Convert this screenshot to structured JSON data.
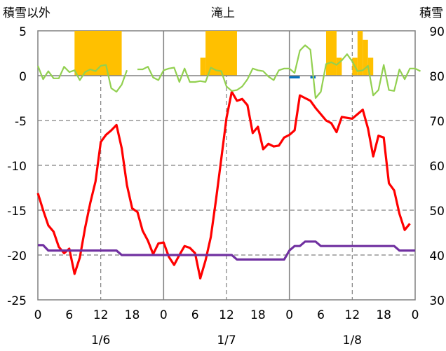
{
  "chart_data": {
    "type": "line",
    "title": "滝上",
    "y_left_label": "積雪以外",
    "y_right_label": "積雪",
    "y_left_range": [
      -25,
      5
    ],
    "y_right_range": [
      30,
      90
    ],
    "y_left_ticks": [
      "5",
      "0",
      "-5",
      "-10",
      "-15",
      "-20",
      "-25"
    ],
    "y_right_ticks": [
      "90",
      "80",
      "70",
      "60",
      "50",
      "40",
      "30"
    ],
    "x_tick_labels": [
      "0",
      "6",
      "12",
      "18",
      "0",
      "6",
      "12",
      "18",
      "0",
      "6",
      "12",
      "18",
      "0"
    ],
    "x_day_labels": [
      "1/6",
      "1/7",
      "1/8"
    ],
    "colors": {
      "red": "#ff0000",
      "green": "#92d050",
      "purple": "#7030a0",
      "orange": "#ffc000",
      "blue": "#0070c0"
    },
    "series": [
      {
        "key": "red",
        "values": [
          -13.1,
          -15,
          -16.7,
          -17.4,
          -19.1,
          -19.8,
          -19.3,
          -22.1,
          -20.3,
          -17,
          -14.2,
          -11.8,
          -7.4,
          -6.6,
          -6.1,
          -5.5,
          -8.1,
          -12.2,
          -14.8,
          -15.2,
          -17.3,
          -18.4,
          -19.9,
          -18.7,
          -18.6,
          -20.2,
          -21.1,
          -20,
          -19,
          -19.2,
          -19.8,
          -22.6,
          -20.6,
          -18,
          -13.8,
          -9.3,
          -4.7,
          -1.8,
          -2.8,
          -2.6,
          -3.3,
          -6.4,
          -5.7,
          -8.2,
          -7.6,
          -7.9,
          -7.8,
          -6.9,
          -6.6,
          -6.1,
          -2.2,
          -2.5,
          -2.8,
          -3.6,
          -4.3,
          -5,
          -5.3,
          -6.3,
          -4.6,
          -4.7,
          -4.8,
          -4.3,
          -3.8,
          -5.9,
          -9,
          -6.7,
          -6.9,
          -12,
          -12.8,
          -15.4,
          -17.2,
          -16.5
        ]
      },
      {
        "key": "green",
        "values": [
          1.1,
          -0.4,
          0.5,
          -0.3,
          -0.3,
          1.0,
          0.4,
          0.6,
          -0.5,
          0.4,
          0.7,
          0.5,
          1.1,
          1.2,
          -1.4,
          -1.8,
          -1.0,
          0.6,
          null,
          0.7,
          0.7,
          1.0,
          -0.2,
          -0.5,
          0.6,
          0.8,
          0.9,
          -0.7,
          0.8,
          -0.7,
          -0.7,
          -0.6,
          -0.7,
          0.9,
          0.6,
          0.5,
          -1.2,
          -1.7,
          -1.6,
          -1.2,
          -0.4,
          0.8,
          0.6,
          0.5,
          -0.1,
          -0.5,
          0.6,
          0.8,
          0.8,
          0.3,
          2.8,
          3.4,
          2.9,
          -2.5,
          -1.8,
          1.3,
          1.5,
          1.2,
          1.7,
          2.4,
          1.6,
          0.5,
          0.6,
          1.1,
          -2.2,
          -1.6,
          1.2,
          -1.6,
          -1.7,
          0.7,
          -0.4,
          0.8,
          0.8,
          0.5
        ]
      },
      {
        "key": "purple",
        "values": [
          -18.9,
          -18.9,
          -19.5,
          -19.5,
          -19.5,
          -19.5,
          -19.5,
          -19.5,
          -19.5,
          -19.5,
          -19.5,
          -19.5,
          -19.5,
          -19.5,
          -19.5,
          -19.5,
          -20,
          -20,
          -20,
          -20,
          -20,
          -20,
          -20,
          -20,
          -20,
          -20,
          -20,
          -20,
          -20,
          -20,
          -20,
          -20,
          -20,
          -20,
          -20,
          -20,
          -20,
          -20,
          -20.5,
          -20.5,
          -20.5,
          -20.5,
          -20.5,
          -20.5,
          -20.5,
          -20.5,
          -20.5,
          -20.5,
          -19.5,
          -19,
          -19,
          -18.5,
          -18.5,
          -18.5,
          -19,
          -19,
          -19,
          -19,
          -19,
          -19,
          -19,
          -19,
          -19,
          -19,
          -19,
          -19,
          -19,
          -19,
          -19,
          -19.5,
          -19.5,
          -19.5,
          -19.5
        ]
      }
    ],
    "bars_orange": [
      {
        "from": 7,
        "to": 16,
        "value": 5
      },
      {
        "from": 31,
        "to": 32,
        "value": 2
      },
      {
        "from": 32,
        "to": 38,
        "value": 5
      },
      {
        "from": 55,
        "to": 57,
        "value": 5
      },
      {
        "from": 57,
        "to": 58,
        "value": 2
      },
      {
        "from": 60,
        "to": 61,
        "value": 2
      },
      {
        "from": 61,
        "to": 62,
        "value": 5
      },
      {
        "from": 62,
        "to": 63,
        "value": 4
      },
      {
        "from": 63,
        "to": 64,
        "value": 2
      }
    ],
    "bars_blue": [
      {
        "from": 48,
        "to": 50,
        "value": -0.3
      },
      {
        "from": 52,
        "to": 53,
        "value": -0.3
      }
    ]
  }
}
